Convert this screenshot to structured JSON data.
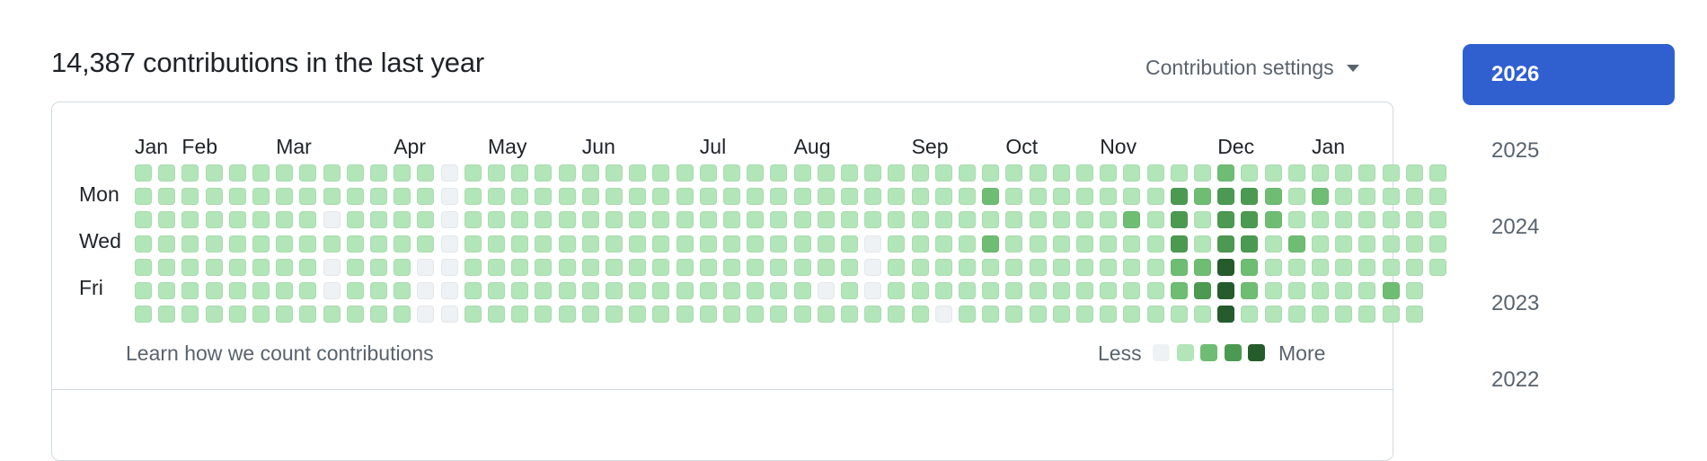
{
  "header": {
    "title": "14,387 contributions in the last year",
    "settings_label": "Contribution settings"
  },
  "graph": {
    "months": [
      "Jan",
      "Feb",
      "Mar",
      "Apr",
      "May",
      "Jun",
      "Jul",
      "Aug",
      "Sep",
      "Oct",
      "Nov",
      "Dec",
      "Jan"
    ],
    "day_labels": [
      "Mon",
      "Wed",
      "Fri"
    ],
    "levels_colors": [
      "#eff2f5",
      "#b2e5b8",
      "#6ebd73",
      "#4c9a52",
      "#255c2c"
    ],
    "weeks": [
      [
        1,
        1,
        1,
        1,
        1,
        1,
        1
      ],
      [
        1,
        1,
        1,
        1,
        1,
        1,
        1
      ],
      [
        1,
        1,
        1,
        1,
        1,
        1,
        1
      ],
      [
        1,
        1,
        1,
        1,
        1,
        1,
        1
      ],
      [
        1,
        1,
        1,
        1,
        1,
        1,
        1
      ],
      [
        1,
        1,
        1,
        1,
        1,
        1,
        1
      ],
      [
        1,
        1,
        1,
        1,
        1,
        1,
        1
      ],
      [
        1,
        1,
        1,
        1,
        1,
        1,
        1
      ],
      [
        1,
        1,
        0,
        1,
        0,
        0,
        1
      ],
      [
        1,
        1,
        1,
        1,
        1,
        1,
        1
      ],
      [
        1,
        1,
        1,
        1,
        1,
        1,
        1
      ],
      [
        1,
        1,
        1,
        1,
        1,
        1,
        1
      ],
      [
        1,
        1,
        1,
        1,
        0,
        0,
        0
      ],
      [
        0,
        0,
        0,
        0,
        0,
        0,
        0
      ],
      [
        1,
        1,
        1,
        1,
        1,
        1,
        1
      ],
      [
        1,
        1,
        1,
        1,
        1,
        1,
        1
      ],
      [
        1,
        1,
        1,
        1,
        1,
        1,
        1
      ],
      [
        1,
        1,
        1,
        1,
        1,
        1,
        1
      ],
      [
        1,
        1,
        1,
        1,
        1,
        1,
        1
      ],
      [
        1,
        1,
        1,
        1,
        1,
        1,
        1
      ],
      [
        1,
        1,
        1,
        1,
        1,
        1,
        1
      ],
      [
        1,
        1,
        1,
        1,
        1,
        1,
        1
      ],
      [
        1,
        1,
        1,
        1,
        1,
        1,
        1
      ],
      [
        1,
        1,
        1,
        1,
        1,
        1,
        1
      ],
      [
        1,
        1,
        1,
        1,
        1,
        1,
        1
      ],
      [
        1,
        1,
        1,
        1,
        1,
        1,
        1
      ],
      [
        1,
        1,
        1,
        1,
        1,
        1,
        1
      ],
      [
        1,
        1,
        1,
        1,
        1,
        1,
        1
      ],
      [
        1,
        1,
        1,
        1,
        1,
        1,
        1
      ],
      [
        1,
        1,
        1,
        1,
        1,
        0,
        1
      ],
      [
        1,
        1,
        1,
        1,
        1,
        1,
        1
      ],
      [
        1,
        1,
        1,
        0,
        0,
        0,
        1
      ],
      [
        1,
        1,
        1,
        1,
        1,
        1,
        1
      ],
      [
        1,
        1,
        1,
        1,
        1,
        1,
        1
      ],
      [
        1,
        1,
        1,
        1,
        1,
        1,
        0
      ],
      [
        1,
        1,
        1,
        1,
        1,
        1,
        1
      ],
      [
        1,
        2,
        1,
        2,
        1,
        1,
        1
      ],
      [
        1,
        1,
        1,
        1,
        1,
        1,
        1
      ],
      [
        1,
        1,
        1,
        1,
        1,
        1,
        1
      ],
      [
        1,
        1,
        1,
        1,
        1,
        1,
        1
      ],
      [
        1,
        1,
        1,
        1,
        1,
        1,
        1
      ],
      [
        1,
        1,
        1,
        1,
        1,
        1,
        1
      ],
      [
        1,
        1,
        2,
        1,
        1,
        1,
        1
      ],
      [
        1,
        1,
        1,
        1,
        1,
        1,
        1
      ],
      [
        1,
        3,
        3,
        3,
        2,
        2,
        1
      ],
      [
        1,
        2,
        1,
        1,
        2,
        3,
        1
      ],
      [
        2,
        3,
        3,
        3,
        4,
        4,
        4
      ],
      [
        1,
        3,
        3,
        3,
        2,
        2,
        1
      ],
      [
        1,
        2,
        2,
        1,
        1,
        1,
        1
      ],
      [
        1,
        1,
        1,
        2,
        1,
        1,
        1
      ],
      [
        1,
        2,
        1,
        1,
        1,
        1,
        1
      ],
      [
        1,
        1,
        1,
        1,
        1,
        1,
        1
      ],
      [
        1,
        1,
        1,
        1,
        1,
        1,
        1
      ],
      [
        1,
        1,
        1,
        1,
        1,
        2,
        1
      ],
      [
        1,
        1,
        1,
        1,
        1,
        1,
        1
      ],
      [
        1,
        1,
        1,
        1,
        1,
        null,
        null
      ]
    ]
  },
  "footer": {
    "learn_link": "Learn how we count contributions",
    "less_label": "Less",
    "more_label": "More"
  },
  "years": [
    "2026",
    "2025",
    "2024",
    "2023",
    "2022"
  ],
  "selected_year": "2026"
}
